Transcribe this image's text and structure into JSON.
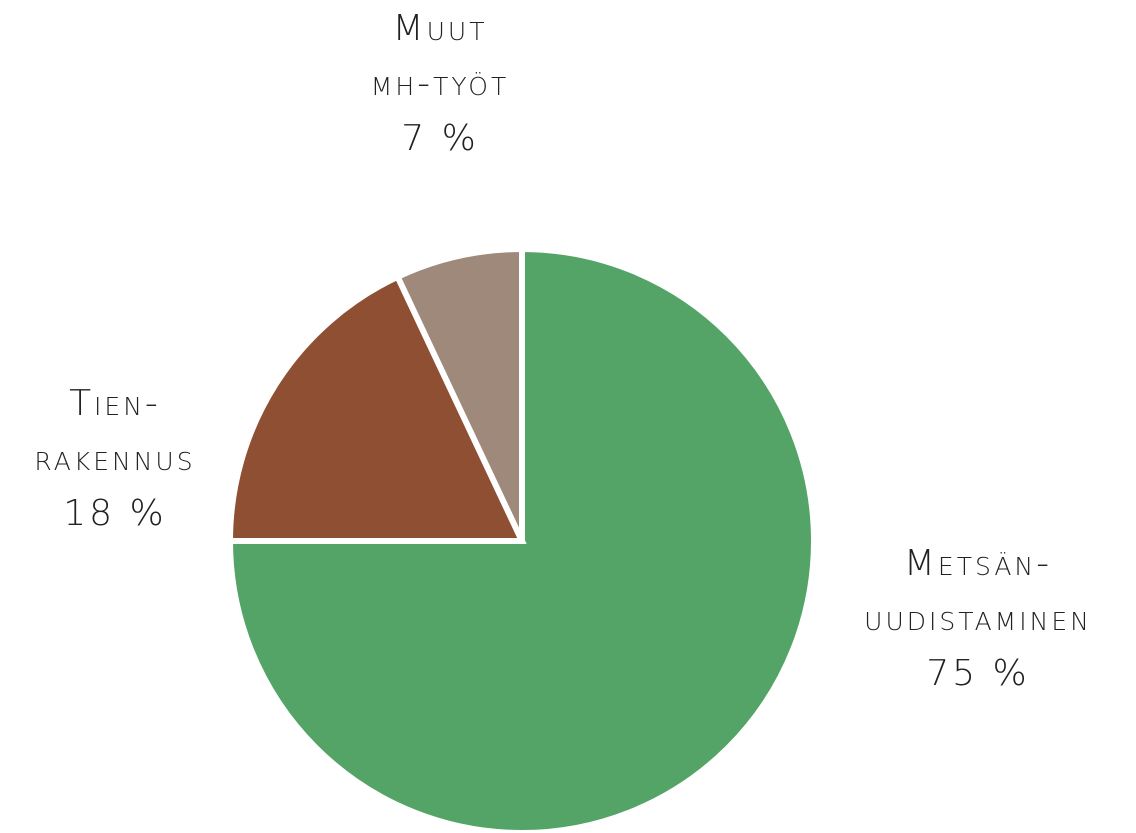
{
  "chart_data": {
    "type": "pie",
    "categories": [
      [
        "Metsän-",
        "uudistaminen"
      ],
      [
        "Tien-",
        "rakennus"
      ],
      [
        "Muut",
        "mh-työt"
      ]
    ],
    "values": [
      75,
      18,
      7
    ],
    "value_labels": [
      "75 %",
      "18 %",
      "7 %"
    ],
    "colors": [
      "#53a466",
      "#8f4f33",
      "#9e897a"
    ]
  }
}
